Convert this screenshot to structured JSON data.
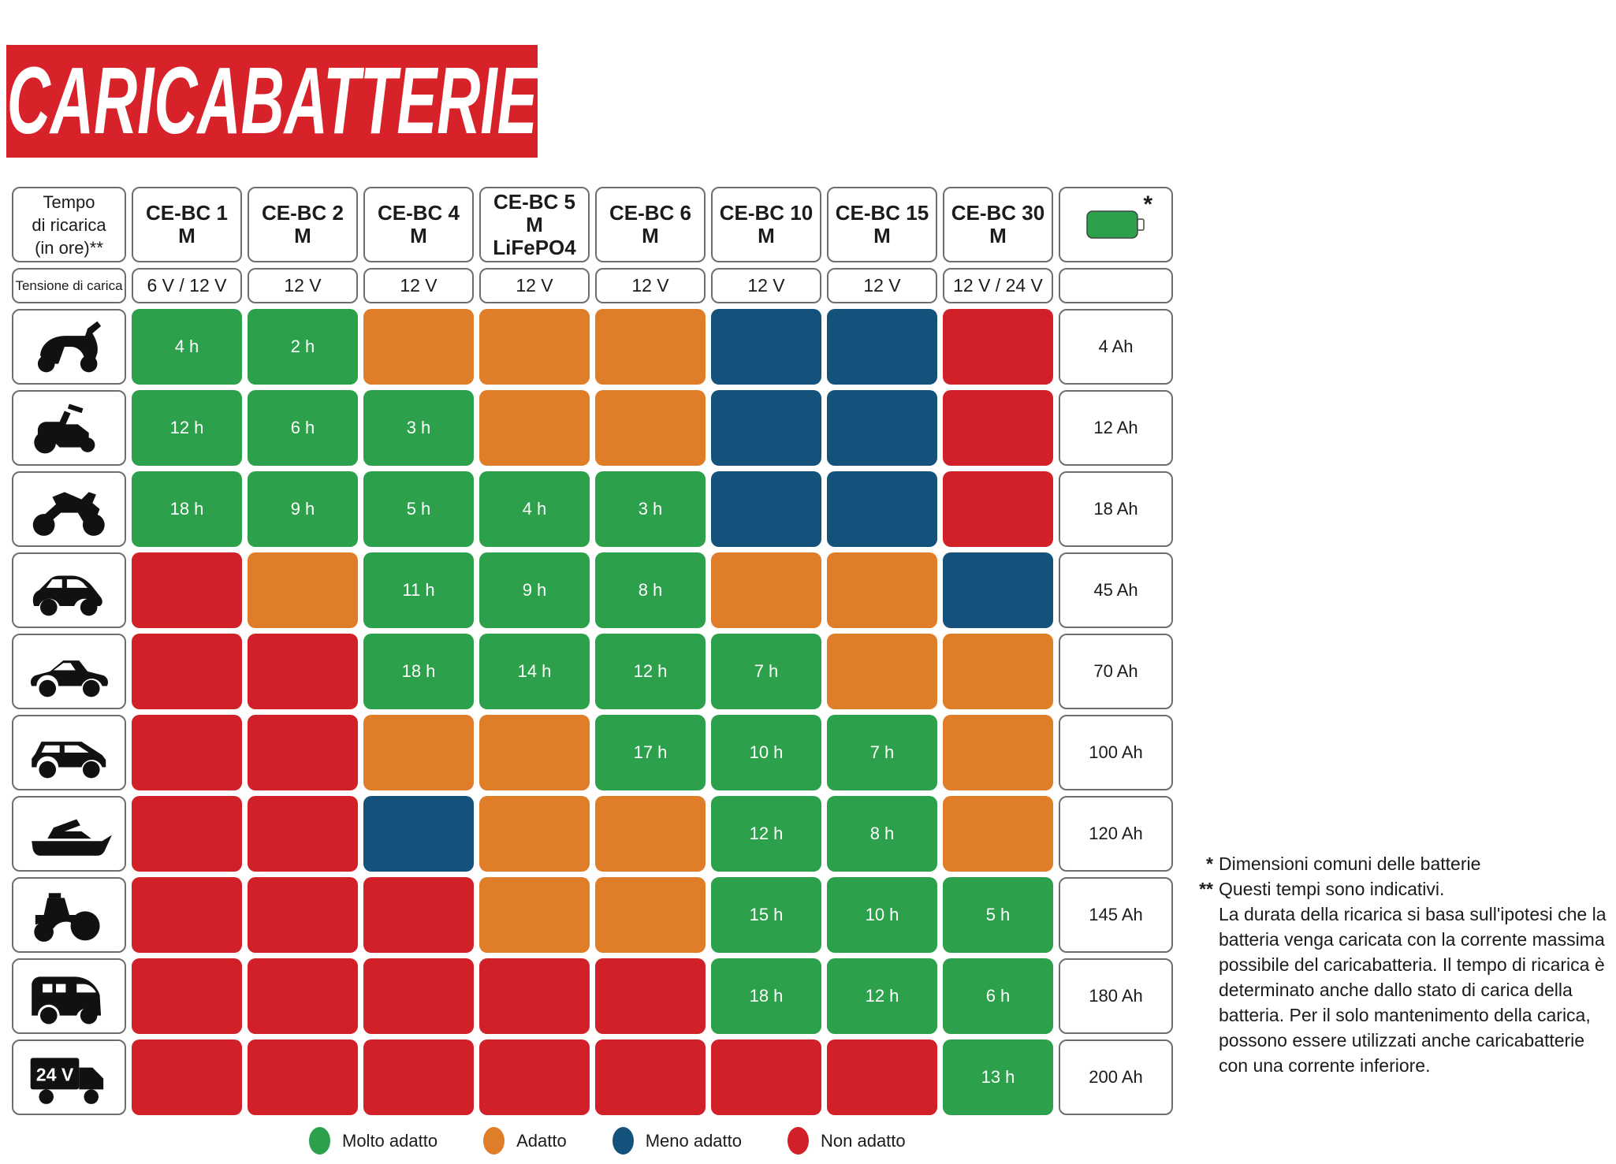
{
  "title": "CARICABATTERIE",
  "colors": {
    "banner_red": "#d8222a",
    "green": "#2da04b",
    "orange": "#e07d28",
    "blue": "#14527c",
    "red": "#d12027",
    "cell_border": "#6e6e6e",
    "icon_black": "#111111"
  },
  "table": {
    "time_header": [
      "Tempo",
      "di ricarica",
      "(in ore)**"
    ],
    "voltage_header": "Tensione di carica",
    "battery_header_note": "*",
    "chargers": [
      {
        "name": "CE-BC 1 M",
        "name2": "",
        "voltage": "6 V / 12 V"
      },
      {
        "name": "CE-BC 2 M",
        "name2": "",
        "voltage": "12 V"
      },
      {
        "name": "CE-BC 4 M",
        "name2": "",
        "voltage": "12 V"
      },
      {
        "name": "CE-BC 5 M",
        "name2": "LiFePO4",
        "voltage": "12 V"
      },
      {
        "name": "CE-BC 6 M",
        "name2": "",
        "voltage": "12 V"
      },
      {
        "name": "CE-BC 10 M",
        "name2": "",
        "voltage": "12 V"
      },
      {
        "name": "CE-BC 15 M",
        "name2": "",
        "voltage": "12 V"
      },
      {
        "name": "CE-BC 30 M",
        "name2": "",
        "voltage": "12 V / 24 V"
      }
    ],
    "rows": [
      {
        "vehicle": "scooter",
        "capacity": "4 Ah",
        "icon_label": "",
        "cells": [
          {
            "status": "green",
            "time": "4 h"
          },
          {
            "status": "green",
            "time": "2 h"
          },
          {
            "status": "orange",
            "time": ""
          },
          {
            "status": "orange",
            "time": ""
          },
          {
            "status": "orange",
            "time": ""
          },
          {
            "status": "blue",
            "time": ""
          },
          {
            "status": "blue",
            "time": ""
          },
          {
            "status": "red",
            "time": ""
          }
        ]
      },
      {
        "vehicle": "mower",
        "capacity": "12 Ah",
        "icon_label": "",
        "cells": [
          {
            "status": "green",
            "time": "12 h"
          },
          {
            "status": "green",
            "time": "6 h"
          },
          {
            "status": "green",
            "time": "3 h"
          },
          {
            "status": "orange",
            "time": ""
          },
          {
            "status": "orange",
            "time": ""
          },
          {
            "status": "blue",
            "time": ""
          },
          {
            "status": "blue",
            "time": ""
          },
          {
            "status": "red",
            "time": ""
          }
        ]
      },
      {
        "vehicle": "motorcycle",
        "capacity": "18 Ah",
        "icon_label": "",
        "cells": [
          {
            "status": "green",
            "time": "18 h"
          },
          {
            "status": "green",
            "time": "9 h"
          },
          {
            "status": "green",
            "time": "5 h"
          },
          {
            "status": "green",
            "time": "4 h"
          },
          {
            "status": "green",
            "time": "3 h"
          },
          {
            "status": "blue",
            "time": ""
          },
          {
            "status": "blue",
            "time": ""
          },
          {
            "status": "red",
            "time": ""
          }
        ]
      },
      {
        "vehicle": "city-car",
        "capacity": "45 Ah",
        "icon_label": "",
        "cells": [
          {
            "status": "red",
            "time": ""
          },
          {
            "status": "orange",
            "time": ""
          },
          {
            "status": "green",
            "time": "11 h"
          },
          {
            "status": "green",
            "time": "9 h"
          },
          {
            "status": "green",
            "time": "8 h"
          },
          {
            "status": "orange",
            "time": ""
          },
          {
            "status": "orange",
            "time": ""
          },
          {
            "status": "blue",
            "time": ""
          }
        ]
      },
      {
        "vehicle": "sedan",
        "capacity": "70 Ah",
        "icon_label": "",
        "cells": [
          {
            "status": "red",
            "time": ""
          },
          {
            "status": "red",
            "time": ""
          },
          {
            "status": "green",
            "time": "18 h"
          },
          {
            "status": "green",
            "time": "14 h"
          },
          {
            "status": "green",
            "time": "12 h"
          },
          {
            "status": "green",
            "time": "7 h"
          },
          {
            "status": "orange",
            "time": ""
          },
          {
            "status": "orange",
            "time": ""
          }
        ]
      },
      {
        "vehicle": "wagon",
        "capacity": "100 Ah",
        "icon_label": "",
        "cells": [
          {
            "status": "red",
            "time": ""
          },
          {
            "status": "red",
            "time": ""
          },
          {
            "status": "orange",
            "time": ""
          },
          {
            "status": "orange",
            "time": ""
          },
          {
            "status": "green",
            "time": "17 h"
          },
          {
            "status": "green",
            "time": "10 h"
          },
          {
            "status": "green",
            "time": "7 h"
          },
          {
            "status": "orange",
            "time": ""
          }
        ]
      },
      {
        "vehicle": "boat",
        "capacity": "120 Ah",
        "icon_label": "",
        "cells": [
          {
            "status": "red",
            "time": ""
          },
          {
            "status": "red",
            "time": ""
          },
          {
            "status": "blue",
            "time": ""
          },
          {
            "status": "orange",
            "time": ""
          },
          {
            "status": "orange",
            "time": ""
          },
          {
            "status": "green",
            "time": "12 h"
          },
          {
            "status": "green",
            "time": "8 h"
          },
          {
            "status": "orange",
            "time": ""
          }
        ]
      },
      {
        "vehicle": "tractor",
        "capacity": "145 Ah",
        "icon_label": "",
        "cells": [
          {
            "status": "red",
            "time": ""
          },
          {
            "status": "red",
            "time": ""
          },
          {
            "status": "red",
            "time": ""
          },
          {
            "status": "orange",
            "time": ""
          },
          {
            "status": "orange",
            "time": ""
          },
          {
            "status": "green",
            "time": "15 h"
          },
          {
            "status": "green",
            "time": "10 h"
          },
          {
            "status": "green",
            "time": "5 h"
          }
        ]
      },
      {
        "vehicle": "camper",
        "capacity": "180 Ah",
        "icon_label": "",
        "cells": [
          {
            "status": "red",
            "time": ""
          },
          {
            "status": "red",
            "time": ""
          },
          {
            "status": "red",
            "time": ""
          },
          {
            "status": "red",
            "time": ""
          },
          {
            "status": "red",
            "time": ""
          },
          {
            "status": "green",
            "time": "18 h"
          },
          {
            "status": "green",
            "time": "12 h"
          },
          {
            "status": "green",
            "time": "6 h"
          }
        ]
      },
      {
        "vehicle": "truck-24v",
        "capacity": "200 Ah",
        "icon_label": "24 V",
        "cells": [
          {
            "status": "red",
            "time": ""
          },
          {
            "status": "red",
            "time": ""
          },
          {
            "status": "red",
            "time": ""
          },
          {
            "status": "red",
            "time": ""
          },
          {
            "status": "red",
            "time": ""
          },
          {
            "status": "red",
            "time": ""
          },
          {
            "status": "red",
            "time": ""
          },
          {
            "status": "green",
            "time": "13 h"
          }
        ]
      }
    ]
  },
  "legend": [
    {
      "key": "green",
      "label": "Molto adatto"
    },
    {
      "key": "orange",
      "label": "Adatto"
    },
    {
      "key": "blue",
      "label": "Meno adatto"
    },
    {
      "key": "red",
      "label": "Non adatto"
    }
  ],
  "footnotes": {
    "star_mark": "*",
    "star_text": "Dimensioni comuni delle batterie",
    "double_star_mark": "**",
    "double_star_text": "Questi tempi sono indicativi.",
    "body": "La durata della ricarica si basa sull'ipotesi che la batteria venga caricata con la corrente massima possibile del caricabatteria. Il tempo di ricarica è determinato anche dallo stato di carica della batteria. Per il solo mantenimento della carica, possono essere utilizzati anche caricabatterie con una corrente inferiore."
  },
  "chart_data": {
    "type": "heatmap",
    "title": "CARICABATTERIE",
    "columns": [
      "CE-BC 1 M",
      "CE-BC 2 M",
      "CE-BC 4 M",
      "CE-BC 5 M LiFePO4",
      "CE-BC 6 M",
      "CE-BC 10 M",
      "CE-BC 15 M",
      "CE-BC 30 M"
    ],
    "column_voltages": [
      "6 V / 12 V",
      "12 V",
      "12 V",
      "12 V",
      "12 V",
      "12 V",
      "12 V",
      "12 V / 24 V"
    ],
    "legend": {
      "green": "Molto adatto",
      "orange": "Adatto",
      "blue": "Meno adatto",
      "red": "Non adatto"
    },
    "rows": [
      {
        "vehicle": "scooter",
        "battery_capacity": "4 Ah",
        "suitability": [
          "green",
          "green",
          "orange",
          "orange",
          "orange",
          "blue",
          "blue",
          "red"
        ],
        "charge_time_hours": [
          4,
          2,
          null,
          null,
          null,
          null,
          null,
          null
        ]
      },
      {
        "vehicle": "mower",
        "battery_capacity": "12 Ah",
        "suitability": [
          "green",
          "green",
          "green",
          "orange",
          "orange",
          "blue",
          "blue",
          "red"
        ],
        "charge_time_hours": [
          12,
          6,
          3,
          null,
          null,
          null,
          null,
          null
        ]
      },
      {
        "vehicle": "motorcycle",
        "battery_capacity": "18 Ah",
        "suitability": [
          "green",
          "green",
          "green",
          "green",
          "green",
          "blue",
          "blue",
          "red"
        ],
        "charge_time_hours": [
          18,
          9,
          5,
          4,
          3,
          null,
          null,
          null
        ]
      },
      {
        "vehicle": "city-car",
        "battery_capacity": "45 Ah",
        "suitability": [
          "red",
          "orange",
          "green",
          "green",
          "green",
          "orange",
          "orange",
          "blue"
        ],
        "charge_time_hours": [
          null,
          null,
          11,
          9,
          8,
          null,
          null,
          null
        ]
      },
      {
        "vehicle": "sedan",
        "battery_capacity": "70 Ah",
        "suitability": [
          "red",
          "red",
          "green",
          "green",
          "green",
          "green",
          "orange",
          "orange"
        ],
        "charge_time_hours": [
          null,
          null,
          18,
          14,
          12,
          7,
          null,
          null
        ]
      },
      {
        "vehicle": "wagon",
        "battery_capacity": "100 Ah",
        "suitability": [
          "red",
          "red",
          "orange",
          "orange",
          "green",
          "green",
          "green",
          "orange"
        ],
        "charge_time_hours": [
          null,
          null,
          null,
          null,
          17,
          10,
          7,
          null
        ]
      },
      {
        "vehicle": "boat",
        "battery_capacity": "120 Ah",
        "suitability": [
          "red",
          "red",
          "blue",
          "orange",
          "orange",
          "green",
          "green",
          "orange"
        ],
        "charge_time_hours": [
          null,
          null,
          null,
          null,
          null,
          12,
          8,
          null
        ]
      },
      {
        "vehicle": "tractor",
        "battery_capacity": "145 Ah",
        "suitability": [
          "red",
          "red",
          "red",
          "orange",
          "orange",
          "green",
          "green",
          "green"
        ],
        "charge_time_hours": [
          null,
          null,
          null,
          null,
          null,
          15,
          10,
          5
        ]
      },
      {
        "vehicle": "camper",
        "battery_capacity": "180 Ah",
        "suitability": [
          "red",
          "red",
          "red",
          "red",
          "red",
          "green",
          "green",
          "green"
        ],
        "charge_time_hours": [
          null,
          null,
          null,
          null,
          null,
          18,
          12,
          6
        ]
      },
      {
        "vehicle": "truck-24v",
        "battery_capacity": "200 Ah",
        "suitability": [
          "red",
          "red",
          "red",
          "red",
          "red",
          "red",
          "red",
          "green"
        ],
        "charge_time_hours": [
          null,
          null,
          null,
          null,
          null,
          null,
          null,
          13
        ]
      }
    ]
  }
}
